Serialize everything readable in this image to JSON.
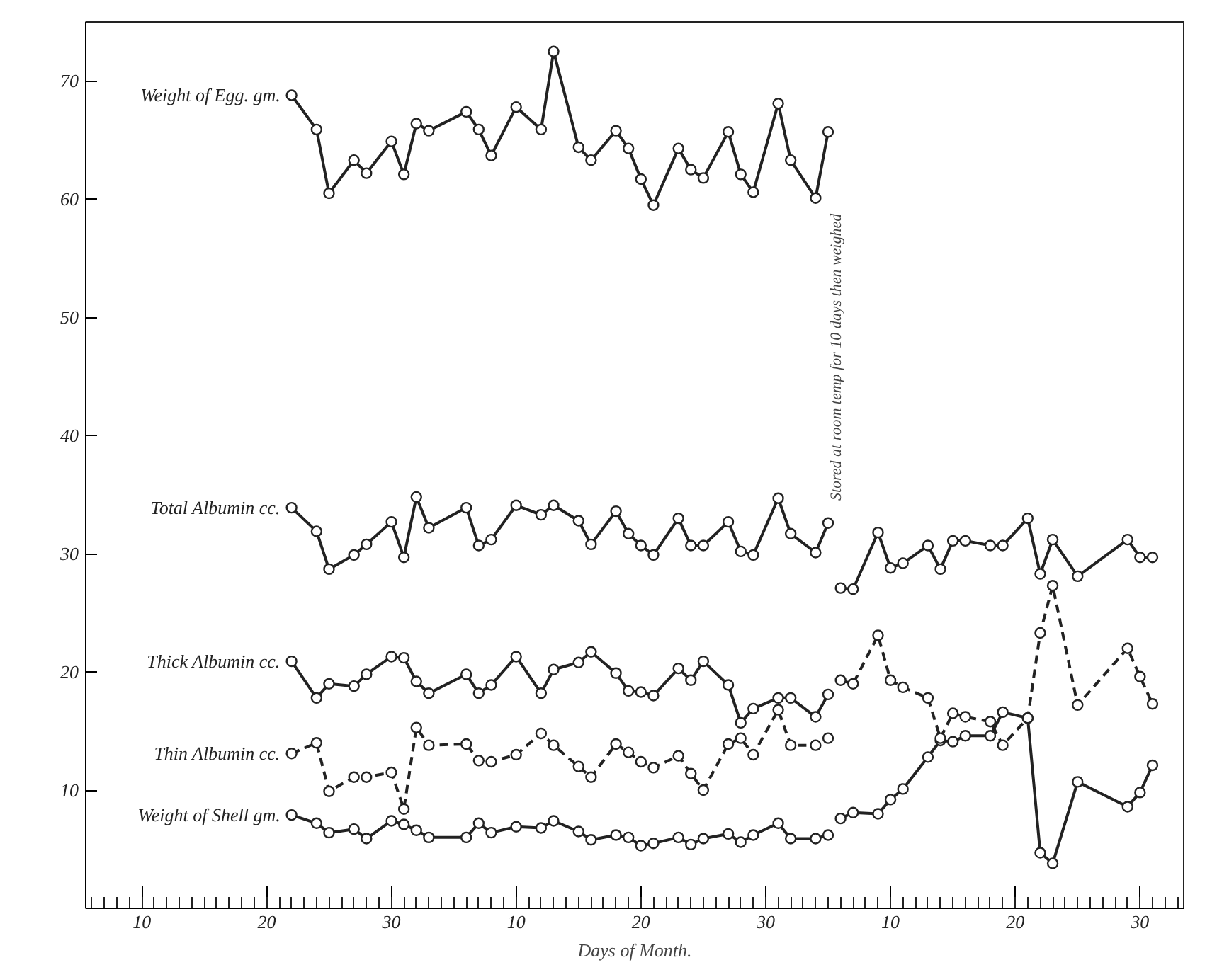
{
  "chart_data": {
    "type": "line",
    "xlabel": "Days of Month.",
    "categories": [
      null,
      null,
      null,
      null,
      "10",
      null,
      null,
      null,
      null,
      null,
      null,
      null,
      null,
      null,
      "20",
      null,
      null,
      null,
      null,
      null,
      null,
      null,
      null,
      null,
      "30",
      null,
      null,
      null,
      null,
      null,
      null,
      null,
      null,
      null,
      "10",
      null,
      null,
      null,
      null,
      null,
      null,
      null,
      null,
      null,
      "20",
      null,
      null,
      null,
      null,
      null,
      null,
      null,
      null,
      null,
      "30",
      null,
      null,
      null,
      null,
      null,
      null,
      null,
      null,
      null,
      "10",
      null,
      null,
      null,
      null,
      null,
      null,
      null,
      null,
      null,
      "20",
      null,
      null,
      null,
      null,
      null,
      null,
      null,
      null,
      null,
      "30",
      null,
      null,
      null
    ],
    "ylim": [
      0,
      75
    ],
    "yticks": [
      10,
      20,
      30,
      40,
      50,
      60,
      70
    ],
    "grid": false,
    "marker": "circle",
    "annotations": [
      "Stored at room temp for 10 days then weighed"
    ],
    "series": [
      {
        "name": "Weight of Egg. gm.",
        "color": "#222222",
        "values": [
          null,
          null,
          null,
          null,
          null,
          null,
          null,
          null,
          null,
          null,
          null,
          null,
          null,
          null,
          null,
          null,
          68.8,
          null,
          65.9,
          60.5,
          null,
          63.3,
          62.2,
          null,
          64.9,
          62.1,
          66.4,
          65.8,
          null,
          null,
          67.4,
          65.9,
          63.7,
          null,
          67.8,
          null,
          65.9,
          72.5,
          null,
          64.4,
          63.3,
          null,
          65.8,
          64.3,
          61.7,
          59.5,
          null,
          64.3,
          62.5,
          61.8,
          null,
          65.7,
          62.1,
          60.6,
          null,
          68.1,
          63.3,
          null,
          60.1,
          65.7,
          null,
          null,
          null,
          null,
          null,
          null,
          null,
          null,
          null,
          null,
          null,
          null,
          null,
          null,
          null,
          null,
          null,
          null,
          null,
          null,
          null,
          null,
          null,
          null,
          null,
          null,
          null,
          null
        ]
      },
      {
        "name": "Total Albumin cc.",
        "color": "#222222",
        "values": [
          null,
          null,
          null,
          null,
          null,
          null,
          null,
          null,
          null,
          null,
          null,
          null,
          null,
          null,
          null,
          null,
          33.9,
          null,
          31.9,
          28.7,
          null,
          29.9,
          30.8,
          null,
          32.7,
          29.7,
          34.8,
          32.2,
          null,
          null,
          33.9,
          30.7,
          31.2,
          null,
          34.1,
          null,
          33.3,
          34.1,
          null,
          32.8,
          30.8,
          null,
          33.6,
          31.7,
          30.7,
          29.9,
          null,
          33.0,
          30.7,
          30.7,
          null,
          32.7,
          30.2,
          29.9,
          null,
          34.7,
          31.7,
          null,
          30.1,
          32.6,
          null,
          null,
          null,
          null,
          null,
          null,
          null,
          null,
          null,
          null,
          null,
          null,
          null,
          null,
          null,
          null,
          null,
          null,
          null,
          null,
          null,
          null,
          null,
          null,
          null,
          null,
          null,
          null
        ]
      },
      {
        "color": "#222222",
        "values": [
          null,
          null,
          null,
          null,
          null,
          null,
          null,
          null,
          null,
          null,
          null,
          null,
          null,
          null,
          null,
          null,
          null,
          null,
          null,
          null,
          null,
          null,
          null,
          null,
          null,
          null,
          null,
          null,
          null,
          null,
          null,
          null,
          null,
          null,
          null,
          null,
          null,
          null,
          null,
          null,
          null,
          null,
          null,
          null,
          null,
          null,
          null,
          null,
          null,
          null,
          null,
          null,
          null,
          null,
          null,
          null,
          null,
          null,
          null,
          null,
          27.1,
          27.0,
          null,
          31.8,
          28.8,
          29.2,
          null,
          30.7,
          28.7,
          31.1,
          31.1,
          null,
          30.7,
          30.7,
          null,
          33.0,
          28.3,
          31.2,
          null,
          28.1,
          null,
          null,
          null,
          31.2,
          29.7,
          29.7,
          null,
          null
        ]
      },
      {
        "name": "Thick Albumin cc.",
        "color": "#222222",
        "values": [
          null,
          null,
          null,
          null,
          null,
          null,
          null,
          null,
          null,
          null,
          null,
          null,
          null,
          null,
          null,
          null,
          20.9,
          null,
          17.8,
          19.0,
          null,
          18.8,
          19.8,
          null,
          21.3,
          21.2,
          19.2,
          18.2,
          null,
          null,
          19.8,
          18.2,
          18.9,
          null,
          21.3,
          null,
          18.2,
          20.2,
          null,
          20.8,
          21.7,
          null,
          19.9,
          18.4,
          18.3,
          18.0,
          null,
          20.3,
          19.3,
          20.9,
          null,
          18.9,
          15.7,
          16.9,
          null,
          17.8,
          17.8,
          null,
          16.2,
          18.1,
          null,
          null,
          null,
          null,
          null,
          null,
          null,
          null,
          null,
          null,
          null,
          null,
          null,
          null,
          null,
          null,
          null,
          null,
          null,
          null,
          null,
          null,
          null,
          null,
          null,
          null,
          null,
          null
        ]
      },
      {
        "color": "#222222",
        "values": [
          null,
          null,
          null,
          null,
          null,
          null,
          null,
          null,
          null,
          null,
          null,
          null,
          null,
          null,
          null,
          null,
          null,
          null,
          null,
          null,
          null,
          null,
          null,
          null,
          null,
          null,
          null,
          null,
          null,
          null,
          null,
          null,
          null,
          null,
          null,
          null,
          null,
          null,
          null,
          null,
          null,
          null,
          null,
          null,
          null,
          null,
          null,
          null,
          null,
          null,
          null,
          null,
          null,
          null,
          null,
          null,
          null,
          null,
          null,
          null,
          7.6,
          8.1,
          null,
          8.0,
          9.2,
          10.1,
          null,
          12.8,
          14.2,
          14.1,
          14.6,
          null,
          14.6,
          16.6,
          null,
          16.1,
          4.7,
          3.8,
          null,
          10.7,
          null,
          null,
          null,
          8.6,
          9.8,
          12.1,
          null,
          null
        ]
      },
      {
        "name": "Thin Albumin cc.",
        "color": "#222222",
        "line_style": "dashed",
        "values": [
          null,
          null,
          null,
          null,
          null,
          null,
          null,
          null,
          null,
          null,
          null,
          null,
          null,
          null,
          null,
          null,
          13.1,
          null,
          14.0,
          9.9,
          null,
          11.1,
          11.1,
          null,
          11.5,
          8.4,
          15.3,
          13.8,
          null,
          null,
          13.9,
          12.5,
          12.4,
          null,
          13.0,
          null,
          14.8,
          13.8,
          null,
          12.0,
          11.1,
          null,
          13.9,
          13.2,
          12.4,
          11.9,
          null,
          12.9,
          11.4,
          10.0,
          null,
          13.9,
          14.4,
          13.0,
          null,
          16.8,
          13.8,
          null,
          13.8,
          14.4,
          null,
          null,
          null,
          null,
          null,
          null,
          null,
          null,
          null,
          null,
          null,
          null,
          null,
          null,
          null,
          null,
          null,
          null,
          null,
          null,
          null,
          null,
          null,
          null,
          null,
          null,
          null,
          null
        ]
      },
      {
        "color": "#222222",
        "line_style": "dashed",
        "values": [
          null,
          null,
          null,
          null,
          null,
          null,
          null,
          null,
          null,
          null,
          null,
          null,
          null,
          null,
          null,
          null,
          null,
          null,
          null,
          null,
          null,
          null,
          null,
          null,
          null,
          null,
          null,
          null,
          null,
          null,
          null,
          null,
          null,
          null,
          null,
          null,
          null,
          null,
          null,
          null,
          null,
          null,
          null,
          null,
          null,
          null,
          null,
          null,
          null,
          null,
          null,
          null,
          null,
          null,
          null,
          null,
          null,
          null,
          null,
          null,
          19.3,
          19.0,
          null,
          23.1,
          19.3,
          18.7,
          null,
          17.8,
          14.4,
          16.5,
          16.2,
          null,
          15.8,
          13.8,
          null,
          16.1,
          23.3,
          27.3,
          null,
          17.2,
          null,
          null,
          null,
          22.0,
          19.6,
          17.3,
          null,
          null
        ]
      },
      {
        "name": "Weight of Shell gm.",
        "color": "#222222",
        "values": [
          null,
          null,
          null,
          null,
          null,
          null,
          null,
          null,
          null,
          null,
          null,
          null,
          null,
          null,
          null,
          null,
          7.9,
          null,
          7.2,
          6.4,
          null,
          6.7,
          5.9,
          null,
          7.4,
          7.1,
          6.6,
          6.0,
          null,
          null,
          6.0,
          7.2,
          6.4,
          null,
          6.9,
          null,
          6.8,
          7.4,
          null,
          6.5,
          5.8,
          null,
          6.2,
          6.0,
          5.3,
          5.5,
          null,
          6.0,
          5.4,
          5.9,
          null,
          6.3,
          5.6,
          6.2,
          null,
          7.2,
          5.9,
          null,
          5.9,
          6.2,
          null,
          null,
          null,
          null,
          null,
          null,
          null,
          null,
          null,
          null,
          null,
          null,
          null,
          null,
          null,
          null,
          null,
          null,
          null,
          null,
          null,
          null,
          null,
          null,
          null,
          null,
          null,
          null
        ]
      }
    ]
  }
}
